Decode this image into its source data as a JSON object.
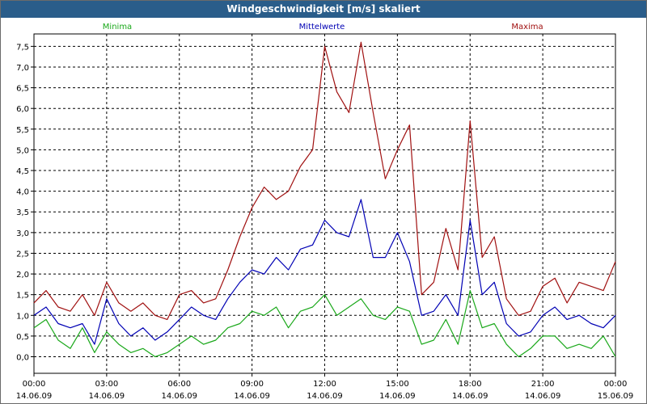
{
  "window": {
    "title": "Windgeschwindigkeit [m/s] skaliert"
  },
  "legend": [
    {
      "name": "Minima",
      "color": "#1aa81a"
    },
    {
      "name": "Mittelwerte",
      "color": "#0000b4"
    },
    {
      "name": "Maxima",
      "color": "#a01010"
    }
  ],
  "chart_data": {
    "type": "line",
    "title": "Windgeschwindigkeit [m/s] skaliert",
    "xlabel": "",
    "ylabel": "",
    "ylim": [
      -0.4,
      7.8
    ],
    "yticks": [
      "0,0",
      "0,5",
      "1,0",
      "1,5",
      "2,0",
      "2,5",
      "3,0",
      "3,5",
      "4,0",
      "4,5",
      "5,0",
      "5,5",
      "6,0",
      "6,5",
      "7,0",
      "7,5"
    ],
    "ytick_values": [
      0,
      0.5,
      1,
      1.5,
      2,
      2.5,
      3,
      3.5,
      4,
      4.5,
      5,
      5.5,
      6,
      6.5,
      7,
      7.5
    ],
    "xlim": [
      0,
      24
    ],
    "xticks": [
      {
        "time": "00:00",
        "date": "14.06.09"
      },
      {
        "time": "03:00",
        "date": "14.06.09"
      },
      {
        "time": "06:00",
        "date": "14.06.09"
      },
      {
        "time": "09:00",
        "date": "14.06.09"
      },
      {
        "time": "12:00",
        "date": "14.06.09"
      },
      {
        "time": "15:00",
        "date": "14.06.09"
      },
      {
        "time": "18:00",
        "date": "14.06.09"
      },
      {
        "time": "21:00",
        "date": "14.06.09"
      },
      {
        "time": "00:00",
        "date": "15.06.09"
      }
    ],
    "grid": true,
    "x_hours": [
      0,
      0.5,
      1,
      1.5,
      2,
      2.5,
      3,
      3.5,
      4,
      4.5,
      5,
      5.5,
      6,
      6.5,
      7,
      7.5,
      8,
      8.5,
      9,
      9.5,
      10,
      10.5,
      11,
      11.5,
      12,
      12.5,
      13,
      13.5,
      14,
      14.5,
      15,
      15.5,
      16,
      16.5,
      17,
      17.5,
      18,
      18.5,
      19,
      19.5,
      20,
      20.5,
      21,
      21.5,
      22,
      22.5,
      23,
      23.5,
      24
    ],
    "series": [
      {
        "name": "Maxima",
        "values": [
          1.3,
          1.6,
          1.2,
          1.1,
          1.5,
          1.0,
          1.8,
          1.3,
          1.1,
          1.3,
          1.0,
          0.9,
          1.5,
          1.6,
          1.3,
          1.4,
          2.1,
          2.9,
          3.6,
          4.1,
          3.8,
          4.0,
          4.6,
          5.0,
          7.5,
          6.4,
          5.9,
          7.6,
          5.9,
          4.3,
          5.0,
          5.6,
          1.5,
          1.8,
          3.1,
          2.1,
          5.7,
          2.4,
          2.9,
          1.4,
          1.0,
          1.1,
          1.7,
          1.9,
          1.3,
          1.8,
          1.7,
          1.6,
          2.3
        ]
      },
      {
        "name": "Mittelwerte",
        "values": [
          1.0,
          1.2,
          0.8,
          0.7,
          0.8,
          0.3,
          1.4,
          0.8,
          0.5,
          0.7,
          0.4,
          0.6,
          0.9,
          1.2,
          1.0,
          0.9,
          1.4,
          1.8,
          2.1,
          2.0,
          2.4,
          2.1,
          2.6,
          2.7,
          3.3,
          3.0,
          2.9,
          3.8,
          2.4,
          2.4,
          3.0,
          2.3,
          1.0,
          1.1,
          1.5,
          1.0,
          3.3,
          1.5,
          1.8,
          0.8,
          0.5,
          0.6,
          1.0,
          1.2,
          0.9,
          1.0,
          0.8,
          0.7,
          1.0
        ]
      },
      {
        "name": "Minima",
        "values": [
          0.7,
          0.9,
          0.4,
          0.2,
          0.7,
          0.1,
          0.6,
          0.3,
          0.1,
          0.2,
          0.0,
          0.1,
          0.3,
          0.5,
          0.3,
          0.4,
          0.7,
          0.8,
          1.1,
          1.0,
          1.2,
          0.7,
          1.1,
          1.2,
          1.5,
          1.0,
          1.2,
          1.4,
          1.0,
          0.9,
          1.2,
          1.1,
          0.3,
          0.4,
          0.9,
          0.3,
          1.6,
          0.7,
          0.8,
          0.3,
          0.0,
          0.2,
          0.5,
          0.5,
          0.2,
          0.3,
          0.2,
          0.5,
          0.0
        ]
      }
    ]
  }
}
